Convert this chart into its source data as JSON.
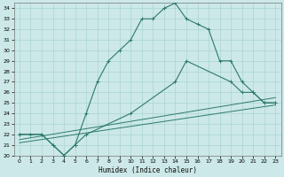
{
  "xlabel": "Humidex (Indice chaleur)",
  "xlim": [
    -0.5,
    23.5
  ],
  "ylim": [
    20,
    34.5
  ],
  "yticks": [
    20,
    21,
    22,
    23,
    24,
    25,
    26,
    27,
    28,
    29,
    30,
    31,
    32,
    33,
    34
  ],
  "xticks": [
    0,
    1,
    2,
    3,
    4,
    5,
    6,
    7,
    8,
    9,
    10,
    11,
    12,
    13,
    14,
    15,
    16,
    17,
    18,
    19,
    20,
    21,
    22,
    23
  ],
  "background_color": "#cce8e8",
  "grid_color": "#aad4d4",
  "line_color": "#2d7a6a",
  "line1_x": [
    0,
    1,
    2,
    3,
    4,
    5,
    6,
    7,
    8,
    9,
    10,
    11,
    12,
    13,
    14,
    15,
    16,
    17,
    18,
    19,
    20,
    21,
    22,
    23
  ],
  "line1_y": [
    22,
    22,
    22,
    21,
    20,
    21,
    24,
    27,
    29,
    30,
    31,
    33,
    33,
    34,
    34.5,
    33,
    32.5,
    32,
    29,
    29,
    27,
    26,
    25,
    25
  ],
  "line2_x": [
    0,
    2,
    3,
    4,
    5,
    6,
    10,
    14,
    15,
    19,
    20,
    21,
    22,
    23
  ],
  "line2_y": [
    22,
    22,
    21,
    20,
    21,
    22,
    24,
    27,
    29,
    27,
    26,
    26,
    25,
    25
  ],
  "line3_x": [
    0,
    23
  ],
  "line3_y": [
    21.5,
    25.5
  ],
  "line4_x": [
    0,
    23
  ],
  "line4_y": [
    21.2,
    24.8
  ],
  "figsize": [
    3.2,
    2.0
  ],
  "dpi": 100
}
